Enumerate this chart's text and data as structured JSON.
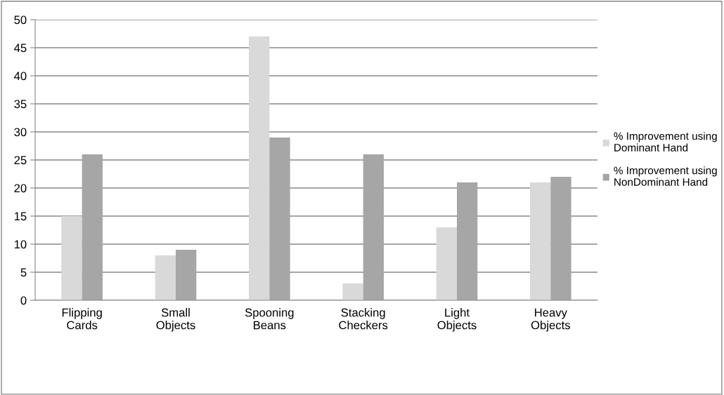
{
  "chart_data": {
    "type": "bar",
    "categories": [
      "Flipping\nCards",
      "Small\nObjects",
      "Spooning\nBeans",
      "Stacking\nCheckers",
      "Light\nObjects",
      "Heavy\nObjects"
    ],
    "series": [
      {
        "name": "% Improvement using\nDominant Hand",
        "color": "#d9d9d9",
        "values": [
          15,
          8,
          47,
          3,
          13,
          21
        ]
      },
      {
        "name": "% Improvement using\nNonDominant Hand",
        "color": "#a6a6a6",
        "values": [
          26,
          9,
          29,
          26,
          21,
          22
        ]
      }
    ],
    "ylim": [
      0,
      50
    ],
    "yticks": [
      0,
      5,
      10,
      15,
      20,
      25,
      30,
      35,
      40,
      45,
      50
    ],
    "grid": "y",
    "legend": "right"
  }
}
